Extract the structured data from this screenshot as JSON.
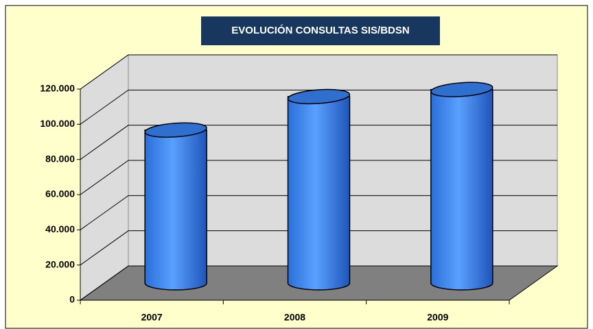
{
  "chart_data": {
    "type": "bar",
    "title": "EVOLUCIÓN CONSULTAS SIS/BDSN",
    "categories": [
      "2007",
      "2008",
      "2009"
    ],
    "values": [
      87000,
      106000,
      110000
    ],
    "color": "#3d85f0",
    "ylim": [
      0,
      120000
    ],
    "yticks": [
      0,
      {
        "value": 20000,
        "label": "20.000"
      },
      {
        "value": 40000,
        "label": "40.000"
      },
      {
        "value": 60000,
        "label": "60.000"
      },
      {
        "value": 80000,
        "label": "80.000"
      },
      {
        "value": 100000,
        "label": "100.000"
      },
      {
        "value": 120000,
        "label": "120.000"
      }
    ],
    "grid": true
  }
}
